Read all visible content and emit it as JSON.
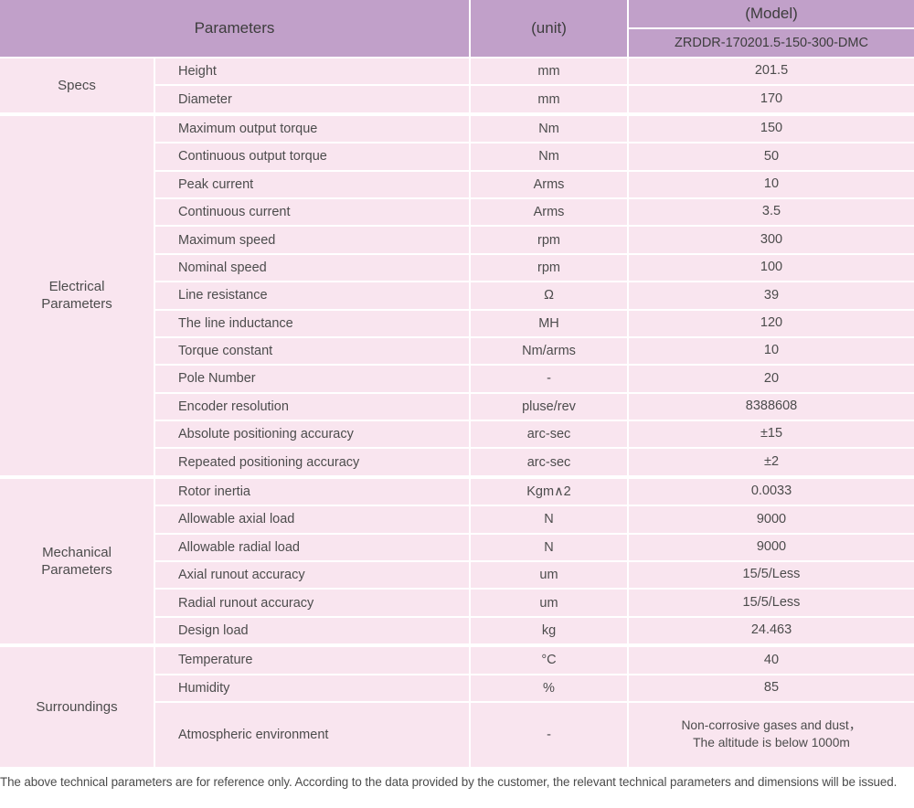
{
  "colors": {
    "header_bg": "#c1a0c9",
    "cell_bg": "#f9e5ef",
    "border": "#ffffff",
    "text": "#4c4c4c"
  },
  "table": {
    "header": {
      "parameters_label": "Parameters",
      "unit_label": "(unit)",
      "model_label": "(Model)",
      "model_value": "ZRDDR-170201.5-150-300-DMC"
    },
    "groups": [
      {
        "category": "Specs",
        "rows": [
          {
            "name": "Height",
            "unit": "mm",
            "value": "201.5"
          },
          {
            "name": "Diameter",
            "unit": "mm",
            "value": "170"
          }
        ]
      },
      {
        "category": "Electrical Parameters",
        "rows": [
          {
            "name": "Maximum output torque",
            "unit": "Nm",
            "value": "150"
          },
          {
            "name": "Continuous output torque",
            "unit": "Nm",
            "value": "50"
          },
          {
            "name": "Peak current",
            "unit": "Arms",
            "value": "10"
          },
          {
            "name": "Continuous current",
            "unit": "Arms",
            "value": "3.5"
          },
          {
            "name": "Maximum speed",
            "unit": "rpm",
            "value": "300"
          },
          {
            "name": "Nominal speed",
            "unit": "rpm",
            "value": "100"
          },
          {
            "name": "Line resistance",
            "unit": "Ω",
            "value": "39"
          },
          {
            "name": "The line inductance",
            "unit": "MH",
            "value": "120"
          },
          {
            "name": "Torque constant",
            "unit": "Nm/arms",
            "value": "10"
          },
          {
            "name": "Pole Number",
            "unit": "-",
            "value": "20"
          },
          {
            "name": "Encoder resolution",
            "unit": "pluse/rev",
            "value": "8388608"
          },
          {
            "name": "Absolute positioning accuracy",
            "unit": "arc-sec",
            "value": "±15"
          },
          {
            "name": "Repeated positioning accuracy",
            "unit": "arc-sec",
            "value": "±2"
          }
        ]
      },
      {
        "category": "Mechanical Parameters",
        "rows": [
          {
            "name": "Rotor inertia",
            "unit": "Kgm∧2",
            "value": "0.0033"
          },
          {
            "name": "Allowable axial load",
            "unit": "N",
            "value": "9000"
          },
          {
            "name": "Allowable radial load",
            "unit": "N",
            "value": "9000"
          },
          {
            "name": "Axial runout accuracy",
            "unit": "um",
            "value": "15/5/Less"
          },
          {
            "name": "Radial runout accuracy",
            "unit": "um",
            "value": "15/5/Less"
          },
          {
            "name": "Design load",
            "unit": "kg",
            "value": "24.463"
          }
        ]
      },
      {
        "category": "Surroundings",
        "rows": [
          {
            "name": "Temperature",
            "unit": "°C",
            "value": "40"
          },
          {
            "name": "Humidity",
            "unit": "%",
            "value": "85"
          },
          {
            "name": "Atmospheric environment",
            "unit": "-",
            "value": "Non-corrosive gases and dust，\nThe altitude is below 1000m"
          }
        ]
      }
    ]
  },
  "footnote": "The above technical parameters are for reference only. According to the data provided by the customer, the relevant technical parameters and dimensions will be issued."
}
